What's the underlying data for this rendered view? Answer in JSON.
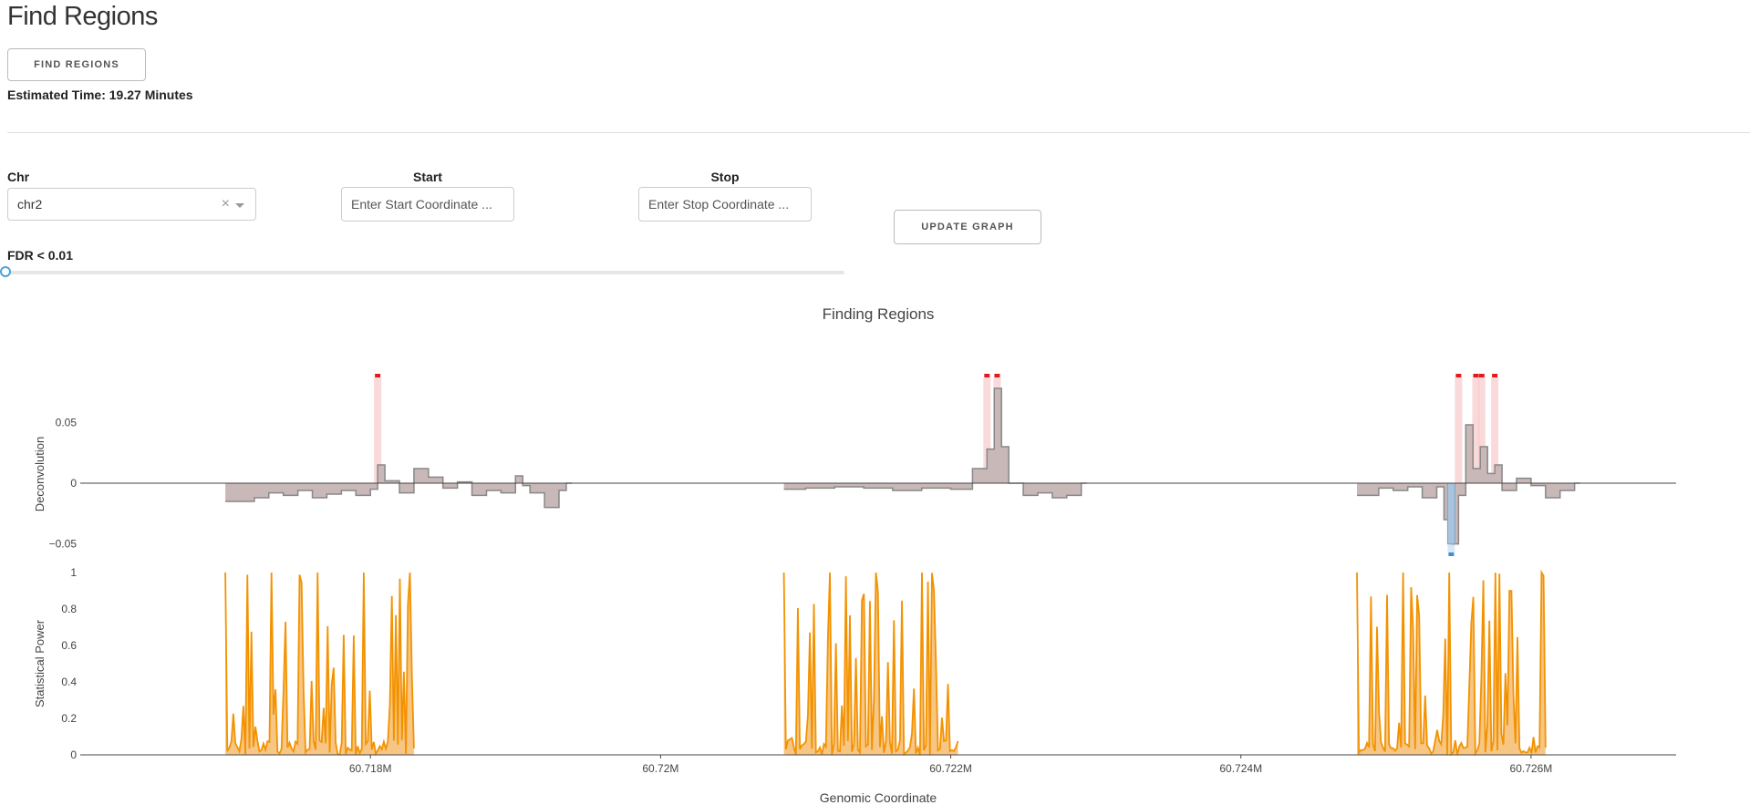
{
  "page": {
    "title": "Find Regions"
  },
  "controls": {
    "find_button": "FIND REGIONS",
    "estimated_time": "Estimated Time: 19.27 Minutes",
    "chr_label": "Chr",
    "chr_value": "chr2",
    "chr_clear": "×",
    "start_label": "Start",
    "start_placeholder": "Enter Start Coordinate ...",
    "stop_label": "Stop",
    "stop_placeholder": "Enter Stop Coordinate ...",
    "update_button": "UPDATE GRAPH",
    "fdr_label": "FDR < 0.01",
    "fdr_value_fraction": 0
  },
  "colors": {
    "deconv_fill": "#c9b8b8",
    "deconv_line": "#888888",
    "neg_fill": "#a9c3dc",
    "red_marker": "#e31a1c",
    "blue_marker": "#3a8fd8",
    "power_line": "#f39200",
    "power_fill": "#f7c684"
  },
  "chart_data": {
    "type": "area",
    "title": "Finding Regions",
    "xlabel": "Genomic Coordinate",
    "x_tick_labels": [
      "60.718M",
      "60.72M",
      "60.722M",
      "60.724M",
      "60.726M"
    ],
    "x_ticks": [
      60718000,
      60720000,
      60722000,
      60724000,
      60726000
    ],
    "xlim": [
      60716000,
      60727000
    ],
    "grid": false,
    "panels": [
      {
        "name": "deconvolution",
        "ylabel": "Deconvolution",
        "y_tick_labels": [
          "0.05",
          "0",
          "−0.05"
        ],
        "y_ticks": [
          0.05,
          0,
          -0.05
        ],
        "ylim": [
          -0.06,
          0.09
        ],
        "series": [
          {
            "x": [
              60717000,
              60717100,
              60717200,
              60717300,
              60717400,
              60717500,
              60717600,
              60717700,
              60717800,
              60717900,
              60718000,
              60718050,
              60718100,
              60718200,
              60718300,
              60718400,
              60718500,
              60718600,
              60718700,
              60718800,
              60718900,
              60719000,
              60719050,
              60719100,
              60719200,
              60719300,
              60719350,
              60720850,
              60721000,
              60721200,
              60721400,
              60721600,
              60721800,
              60722000,
              60722150,
              60722250,
              60722300,
              60722350,
              60722400,
              60722500,
              60722600,
              60722700,
              60722800,
              60722900,
              60724800,
              60724950,
              60725050,
              60725150,
              60725250,
              60725350,
              60725400,
              60725450,
              60725500,
              60725550,
              60725600,
              60725650,
              60725700,
              60725750,
              60725800,
              60725900,
              60726000,
              60726100,
              60726200,
              60726300
            ],
            "y": [
              -0.015,
              -0.015,
              -0.012,
              -0.008,
              -0.01,
              -0.006,
              -0.012,
              -0.009,
              -0.006,
              -0.01,
              -0.005,
              0.015,
              0.002,
              -0.008,
              0.012,
              0.005,
              -0.004,
              0.001,
              -0.01,
              -0.006,
              -0.008,
              0.006,
              -0.002,
              -0.008,
              -0.02,
              -0.006,
              0,
              -0.005,
              -0.004,
              -0.003,
              -0.004,
              -0.006,
              -0.004,
              -0.005,
              0.012,
              0.028,
              0.078,
              0.03,
              0.0,
              -0.01,
              -0.008,
              -0.012,
              -0.01,
              0,
              -0.01,
              -0.004,
              -0.006,
              -0.003,
              -0.012,
              -0.003,
              -0.03,
              -0.05,
              -0.01,
              0.048,
              0.012,
              0.03,
              0.008,
              0.015,
              -0.006,
              0.004,
              -0.002,
              -0.012,
              -0.006,
              0
            ]
          }
        ],
        "markers": [
          {
            "color": "red",
            "x": [
              60718050,
              60722250,
              60722320,
              60725500,
              60725620,
              60725660,
              60725750
            ]
          },
          {
            "color": "blue",
            "x": [
              60725450
            ]
          }
        ]
      },
      {
        "name": "statistical-power",
        "ylabel": "Statistical Power",
        "y_tick_labels": [
          "1",
          "0.8",
          "0.6",
          "0.4",
          "0.2",
          "0"
        ],
        "y_ticks": [
          1,
          0.8,
          0.6,
          0.4,
          0.2,
          0
        ],
        "ylim": [
          0,
          1
        ],
        "regions": [
          {
            "x_start": 60717000,
            "x_end": 60718300,
            "peak": 1.0
          },
          {
            "x_start": 60720850,
            "x_end": 60722050,
            "peak": 1.0
          },
          {
            "x_start": 60724800,
            "x_end": 60726100,
            "peak": 1.0
          }
        ]
      }
    ]
  }
}
